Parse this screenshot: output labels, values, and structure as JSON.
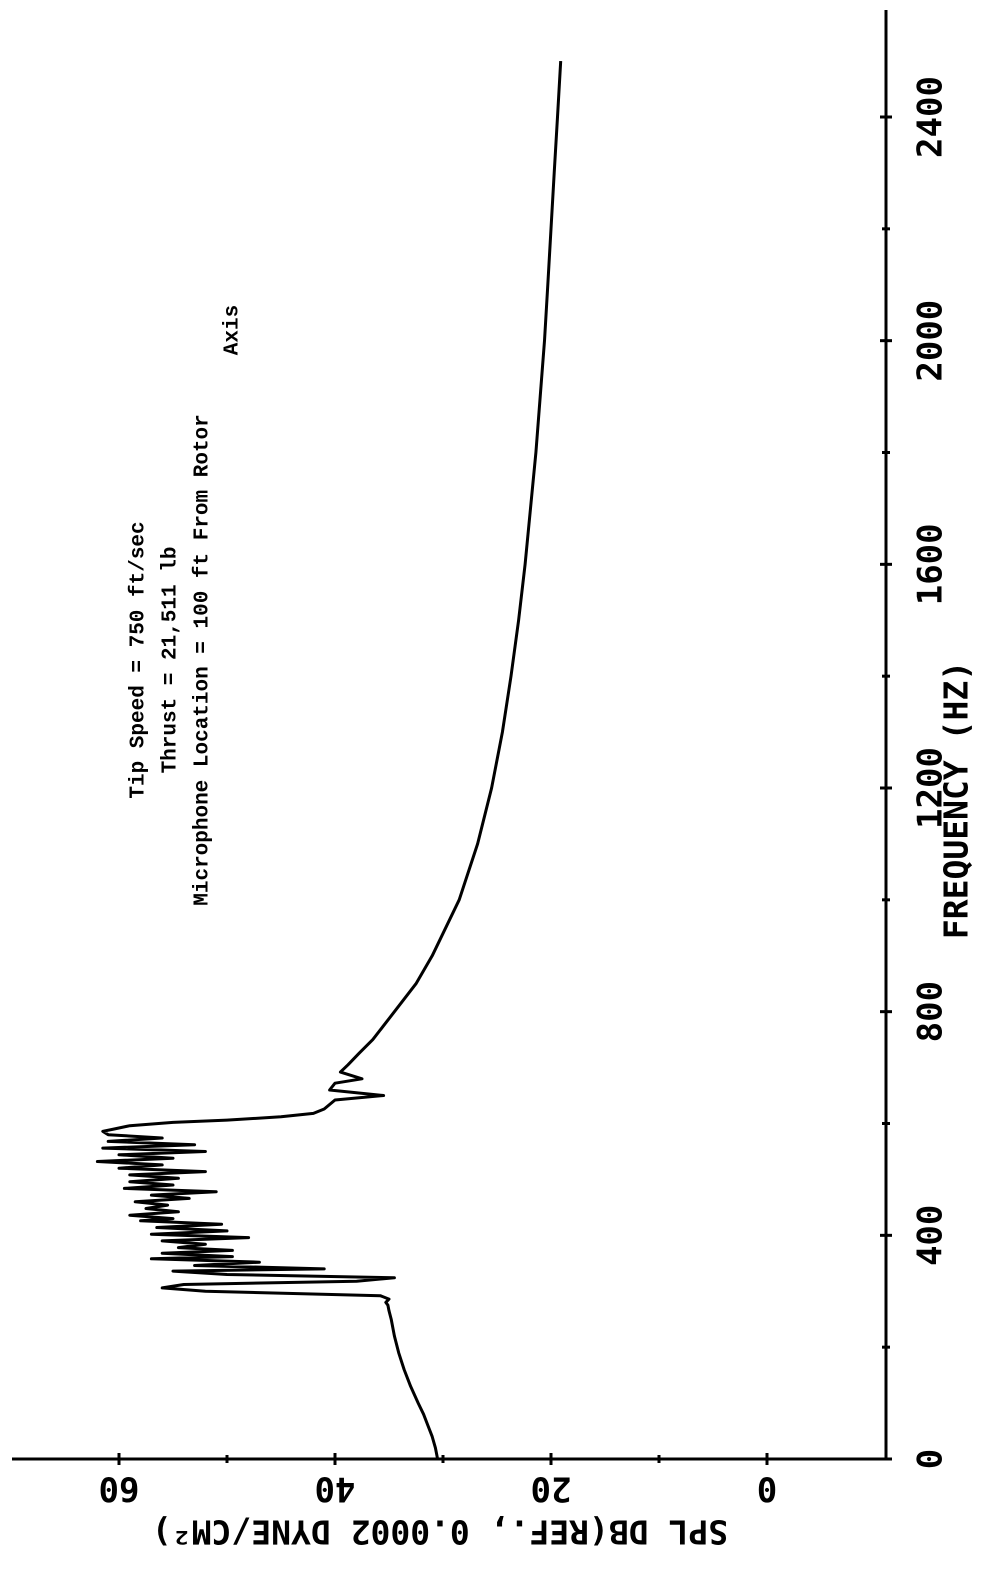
{
  "chart_data": {
    "type": "line",
    "orientation": "rotated-90",
    "xlabel": "FREQUENCY (HZ)",
    "ylabel": "SPL DB(REF., 0.0002 DYNE/CM²)",
    "xlim": [
      0,
      2500
    ],
    "ylim": [
      0,
      68
    ],
    "x_ticks": [
      0,
      400,
      800,
      1200,
      1600,
      2000,
      2400
    ],
    "x_tick_labels": [
      "0",
      "400",
      "800",
      "1200",
      "1600",
      "2000",
      "2400"
    ],
    "x_minor_ticks": [
      200,
      600,
      1000,
      1400,
      1800,
      2200
    ],
    "y_ticks": [
      0,
      20,
      40,
      60
    ],
    "y_tick_labels": [
      "0",
      "20",
      "40",
      "60"
    ],
    "y_minor_ticks": [
      10,
      30,
      50
    ],
    "grid": false,
    "legend": "none",
    "annotation": {
      "lines": [
        "Tip Speed = 750 ft/sec",
        "Thrust = 21,511 lb",
        "Microphone Location = 100 ft From Rotor",
        "Axis"
      ]
    },
    "series": [
      {
        "x": [
          0,
          20,
          40,
          60,
          80,
          100,
          130,
          160,
          190,
          220,
          250,
          265,
          275,
          280,
          286,
          292,
          300,
          306,
          312,
          318,
          324,
          330,
          336,
          340,
          346,
          352,
          358,
          362,
          368,
          373,
          378,
          384,
          390,
          396,
          402,
          408,
          414,
          420,
          426,
          430,
          436,
          442,
          448,
          454,
          460,
          466,
          472,
          478,
          484,
          490,
          496,
          502,
          508,
          514,
          520,
          526,
          532,
          538,
          544,
          550,
          556,
          562,
          568,
          574,
          580,
          586,
          590,
          596,
          602,
          606,
          612,
          618,
          626,
          634,
          642,
          650,
          660,
          672,
          680,
          692,
          705,
          725,
          750,
          800,
          850,
          900,
          1000,
          1100,
          1200,
          1300,
          1400,
          1500,
          1600,
          1700,
          1800,
          1900,
          2000,
          2100,
          2200,
          2300,
          2400,
          2500
        ],
        "y": [
          30.5,
          30.7,
          31.0,
          31.4,
          31.8,
          32.3,
          33.0,
          33.6,
          34.1,
          34.5,
          34.8,
          35.0,
          35.1,
          35.3,
          35.0,
          35.8,
          52.0,
          56.0,
          54.0,
          38.0,
          34.5,
          50.0,
          55.0,
          41.0,
          53.0,
          47.0,
          57.0,
          49.5,
          56.0,
          49.5,
          54.5,
          52.0,
          56.0,
          48.0,
          57.0,
          50.0,
          56.5,
          50.5,
          58.0,
          55.0,
          59.0,
          54.5,
          57.5,
          55.5,
          58.5,
          53.5,
          57.0,
          51.0,
          59.5,
          55.0,
          59.0,
          54.5,
          59.0,
          52.0,
          60.0,
          56.0,
          62.0,
          55.0,
          60.0,
          52.0,
          61.5,
          53.0,
          61.0,
          56.0,
          61.0,
          61.5,
          60.5,
          59.0,
          55.0,
          50.0,
          45.0,
          42.0,
          41.0,
          40.5,
          40.0,
          35.5,
          40.5,
          40.0,
          37.5,
          39.5,
          38.8,
          37.8,
          36.5,
          34.5,
          32.5,
          31.0,
          28.5,
          26.8,
          25.5,
          24.5,
          23.7,
          23.0,
          22.4,
          21.9,
          21.4,
          21.0,
          20.6,
          20.3,
          20.0,
          19.7,
          19.4,
          19.1
        ]
      }
    ]
  }
}
